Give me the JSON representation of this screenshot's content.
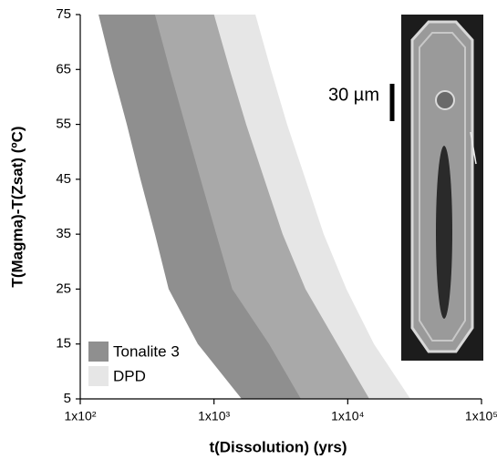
{
  "chart_data": {
    "type": "band",
    "xlabel": "t(Dissolution) (yrs)",
    "ylabel": "T(Magma)-T(Zsat) (ºC)",
    "annotation": "30 µm",
    "xscale": "log",
    "xlim": [
      100,
      100000
    ],
    "xticks": [
      {
        "value": 100,
        "label": "1x10²"
      },
      {
        "value": 1000,
        "label": "1x10³"
      },
      {
        "value": 10000,
        "label": "1x10⁴"
      },
      {
        "value": 100000,
        "label": "1x10⁵"
      }
    ],
    "ylim": [
      5,
      75
    ],
    "yticks": [
      5,
      15,
      25,
      35,
      45,
      55,
      65,
      75
    ],
    "legend": "lower left",
    "y": [
      75,
      65,
      55,
      45,
      35,
      25,
      15,
      5
    ],
    "series": [
      {
        "name": "Tonalite 3",
        "color": "#8f8f8f",
        "opacity": 1,
        "low": [
          137,
          173,
          223,
          282,
          362,
          458,
          757,
          1610
        ],
        "high": [
          1000,
          1310,
          1740,
          2380,
          3260,
          4830,
          8360,
          14500
        ]
      },
      {
        "name": "DPD",
        "color": "#c9c9c9",
        "opacity": 0.46,
        "low": [
          362,
          466,
          608,
          794,
          1040,
          1370,
          2580,
          4460
        ],
        "high": [
          2040,
          2660,
          3520,
          4830,
          6610,
          9770,
          15700,
          29400
        ]
      }
    ]
  }
}
